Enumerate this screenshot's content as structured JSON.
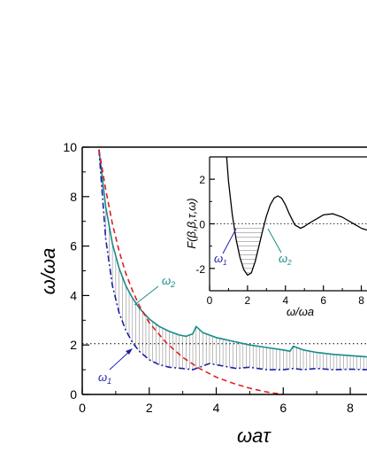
{
  "chart_data": [
    {
      "type": "line",
      "title": "",
      "xlabel": "ωaτ",
      "ylabel": "ω/ωa",
      "xlim": [
        0,
        8.5
      ],
      "ylim": [
        0,
        10
      ],
      "x_ticks": [
        0,
        2,
        4,
        6,
        8
      ],
      "y_ticks": [
        0,
        2,
        4,
        6,
        8,
        10
      ],
      "x_tick_labels": [
        "0",
        "2",
        "4",
        "6",
        "8"
      ],
      "y_tick_labels": [
        "0",
        "2",
        "4",
        "6",
        "8",
        "10"
      ],
      "grid": false,
      "reference_line": {
        "y": 2.05,
        "style": "dotted"
      },
      "series": [
        {
          "name": "ω2",
          "label_main": "ω",
          "label_sub": "2",
          "style": "solid",
          "color": "#1a8a8a",
          "x": [
            0.5,
            0.7,
            0.9,
            1.1,
            1.3,
            1.5,
            1.7,
            2.0,
            2.3,
            2.6,
            2.9,
            3.1,
            3.3,
            3.4,
            3.6,
            4.0,
            4.5,
            5.0,
            5.5,
            6.0,
            6.2,
            6.3,
            6.6,
            7.0,
            7.5,
            8.0,
            8.5
          ],
          "y": [
            9.9,
            7.6,
            6.1,
            5.1,
            4.4,
            3.9,
            3.5,
            3.05,
            2.75,
            2.55,
            2.4,
            2.35,
            2.45,
            2.75,
            2.5,
            2.3,
            2.15,
            2.0,
            1.9,
            1.8,
            1.75,
            1.95,
            1.8,
            1.7,
            1.62,
            1.57,
            1.52
          ]
        },
        {
          "name": "ω1",
          "label_main": "ω",
          "label_sub": "1",
          "style": "dash-dot",
          "color": "#1f1fa8",
          "x": [
            0.5,
            0.7,
            0.9,
            1.1,
            1.3,
            1.5,
            1.7,
            2.0,
            2.3,
            2.6,
            3.0,
            3.3,
            3.5,
            3.8,
            4.2,
            4.6,
            5.0,
            5.5,
            6.0,
            6.3,
            6.6,
            7.0,
            7.5,
            8.0,
            8.5
          ],
          "y": [
            9.9,
            6.3,
            4.4,
            3.3,
            2.6,
            2.1,
            1.75,
            1.4,
            1.2,
            1.1,
            1.05,
            1.0,
            1.1,
            1.25,
            1.15,
            1.05,
            1.1,
            1.0,
            1.0,
            1.05,
            1.0,
            1.05,
            1.0,
            1.02,
            1.0
          ]
        },
        {
          "name": "",
          "style": "dashed",
          "color": "#e02020",
          "x": [
            0.5,
            0.7,
            0.9,
            1.1,
            1.3,
            1.5,
            1.7,
            2.0,
            2.5,
            3.0,
            3.5,
            4.0,
            4.5,
            5.0,
            5.5,
            6.0
          ],
          "y": [
            9.9,
            8.3,
            6.9,
            5.8,
            4.9,
            4.2,
            3.6,
            2.9,
            2.1,
            1.5,
            1.05,
            0.7,
            0.45,
            0.25,
            0.1,
            0.0
          ]
        }
      ]
    },
    {
      "type": "line",
      "title": "",
      "xlabel": "ω/ωa",
      "ylabel": "F(β,β,τ,ω)",
      "xlim": [
        0,
        8.3
      ],
      "ylim": [
        -3,
        3
      ],
      "x_ticks": [
        0,
        2,
        4,
        6,
        8
      ],
      "y_ticks": [
        -2,
        0,
        2
      ],
      "x_tick_labels": [
        "0",
        "2",
        "4",
        "6",
        "8"
      ],
      "y_tick_labels": [
        "-2",
        "0",
        "2"
      ],
      "grid": false,
      "reference_line": {
        "y": 0,
        "style": "dotted"
      },
      "annotations": [
        {
          "label_main": "ω",
          "label_sub": "1",
          "x": 1.3,
          "color": "#1f1fa8"
        },
        {
          "label_main": "ω",
          "label_sub": "2",
          "x": 2.9,
          "color": "#1a8a8a"
        }
      ],
      "series": [
        {
          "name": "",
          "style": "solid",
          "color": "#000000",
          "x": [
            0.9,
            1.0,
            1.2,
            1.4,
            1.6,
            1.8,
            2.0,
            2.2,
            2.4,
            2.6,
            2.8,
            3.0,
            3.2,
            3.4,
            3.6,
            3.8,
            4.0,
            4.2,
            4.5,
            4.8,
            5.0,
            5.2,
            5.5,
            6.0,
            6.5,
            7.0,
            7.5,
            8.0,
            8.3
          ],
          "y": [
            3.0,
            1.9,
            0.4,
            -0.7,
            -1.5,
            -2.05,
            -2.3,
            -2.2,
            -1.7,
            -1.0,
            -0.3,
            0.35,
            0.85,
            1.15,
            1.25,
            1.15,
            0.85,
            0.45,
            -0.05,
            -0.2,
            -0.12,
            0.0,
            0.15,
            0.4,
            0.45,
            0.3,
            0.05,
            -0.2,
            -0.28
          ]
        }
      ]
    }
  ]
}
